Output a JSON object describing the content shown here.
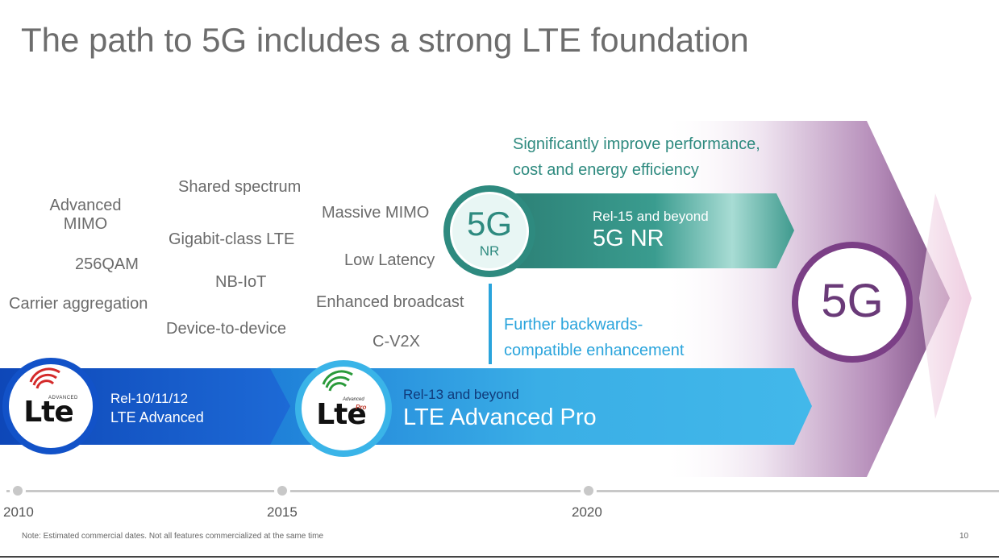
{
  "title": "The path to 5G includes a strong LTE foundation",
  "features_lte_advanced": {
    "advanced_mimo_line1": "Advanced",
    "advanced_mimo_line2": "MIMO",
    "qam": "256QAM",
    "carrier_aggregation": "Carrier aggregation"
  },
  "features_mid": {
    "shared_spectrum": "Shared spectrum",
    "gigabit": "Gigabit-class LTE",
    "nbiot": "NB-IoT",
    "d2d": "Device-to-device"
  },
  "features_pro": {
    "massive_mimo": "Massive  MIMO",
    "low_latency": "Low Latency",
    "broadcast": "Enhanced broadcast",
    "cv2x": "C-V2X"
  },
  "nr_callout": {
    "line1": "Significantly improve performance,",
    "line2": "cost and energy efficiency"
  },
  "backcompat_callout": {
    "line1": "Further backwards-",
    "line2": "compatible enhancement"
  },
  "band_lte_advanced": {
    "release": "Rel-10/11/12",
    "name": "LTE Advanced"
  },
  "band_lte_pro": {
    "release": "Rel-13 and beyond",
    "name": "LTE Advanced Pro"
  },
  "band_5gnr": {
    "release": "Rel-15 and beyond",
    "name": "5G NR"
  },
  "badge_5gnr": {
    "big": "5G",
    "small": "NR"
  },
  "badge_5g": "5G",
  "logo_lte_advanced": {
    "word": "Lte",
    "tag": "ADVANCED"
  },
  "logo_lte_pro": {
    "word": "Lte",
    "tag": "Advanced",
    "tag2": "Pro"
  },
  "timeline": {
    "years": [
      "2010",
      "2015",
      "2020"
    ]
  },
  "footer": {
    "note": "Note: Estimated commercial dates. Not all features commercialized at the same time",
    "page": "10"
  },
  "colors": {
    "lte_advanced_blue": "#1252c8",
    "lte_pro_blue": "#3ab4e8",
    "nr_teal": "#2e8a7f",
    "5g_purple": "#7b3f86"
  }
}
